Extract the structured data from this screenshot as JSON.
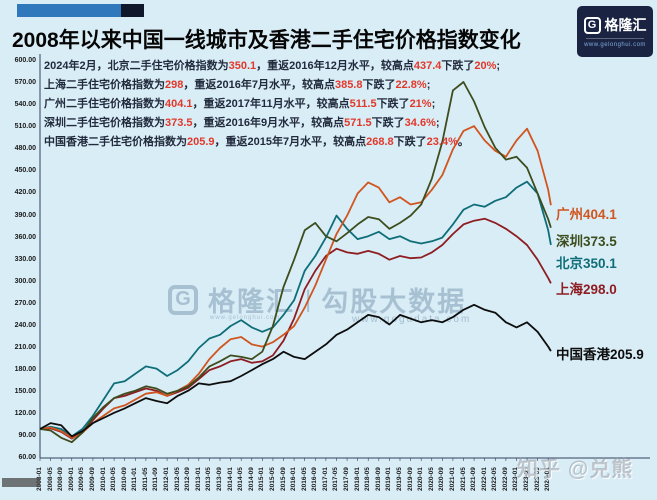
{
  "colors": {
    "background": "#d9edf6",
    "red_highlight": "#e2382a",
    "annotation_text": "#222b3d",
    "axis": "#33415e",
    "deco_blue": "#2e78bb",
    "deco_dark": "#10182c",
    "logo_bg": "#1a2442"
  },
  "header": {
    "title": "2008年以来中国一线城市及香港二手住宅价格指数变化",
    "logo": {
      "g": "G",
      "brand": "格隆汇",
      "url": "www.gelonghui.com"
    }
  },
  "annotations": {
    "lines": [
      [
        {
          "t": "2024年2月，北京二手住宅价格指数为"
        },
        {
          "t": "350.1",
          "red": true
        },
        {
          "t": "，重返2016年12月水平，较高点"
        },
        {
          "t": "437.4",
          "red": true
        },
        {
          "t": "下跌了"
        },
        {
          "t": "20%",
          "red": true
        },
        {
          "t": ";"
        }
      ],
      [
        {
          "t": "上海二手住宅价格指数为"
        },
        {
          "t": "298",
          "red": true
        },
        {
          "t": "，重返2016年7月水平，较高点"
        },
        {
          "t": "385.8",
          "red": true
        },
        {
          "t": "下跌了"
        },
        {
          "t": "22.8%",
          "red": true
        },
        {
          "t": ";"
        }
      ],
      [
        {
          "t": "广州二手住宅价格指数为"
        },
        {
          "t": "404.1",
          "red": true
        },
        {
          "t": "，重返2017年11月水平，较高点"
        },
        {
          "t": "511.5",
          "red": true
        },
        {
          "t": "下跌了"
        },
        {
          "t": "21%",
          "red": true
        },
        {
          "t": ";"
        }
      ],
      [
        {
          "t": "深圳二手住宅价格指数为"
        },
        {
          "t": "373.5",
          "red": true
        },
        {
          "t": "，重返2016年9月水平，较高点"
        },
        {
          "t": "571.5",
          "red": true
        },
        {
          "t": "下跌了"
        },
        {
          "t": "34.6%",
          "red": true
        },
        {
          "t": ";"
        }
      ],
      [
        {
          "t": "中国香港二手住宅价格指数为"
        },
        {
          "t": "205.9",
          "red": true
        },
        {
          "t": "，重返2015年7月水平，较高点"
        },
        {
          "t": "268.8",
          "red": true
        },
        {
          "t": "下跌了"
        },
        {
          "t": "23.4%",
          "red": true
        },
        {
          "t": "。"
        }
      ]
    ]
  },
  "watermark_center": {
    "g": "G",
    "brand": "格隆汇",
    "brand_url": "www.gelonghui.com",
    "sep": "|",
    "name": "勾股大数据",
    "url": "www.gogudata.com"
  },
  "watermark_corner": {
    "text": "知乎 @兑熊"
  },
  "chart_data": {
    "type": "line",
    "title": "2008年以来中国一线城市及香港二手住宅价格指数变化",
    "x_start": "2008-01",
    "x_end": "2024-02",
    "x_step_months": 4,
    "ylim": [
      60,
      600
    ],
    "y_step": 30,
    "grid": false,
    "legend_position": "right-end-labels",
    "y_axis_labels": [
      "600.00",
      "570.00",
      "540.00",
      "510.00",
      "480.00",
      "450.00",
      "420.00",
      "390.00",
      "360.00",
      "330.00",
      "300.00",
      "270.00",
      "240.00",
      "210.00",
      "180.00",
      "150.00",
      "120.00",
      "90.00",
      "60.00"
    ],
    "x_axis_labels": [
      "2008-01",
      "2008-05",
      "2008-09",
      "2009-01",
      "2009-05",
      "2009-09",
      "2010-01",
      "2010-05",
      "2010-09",
      "2011-01",
      "2011-05",
      "2011-09",
      "2012-01",
      "2012-05",
      "2012-09",
      "2013-01",
      "2013-05",
      "2013-09",
      "2014-01",
      "2014-05",
      "2014-09",
      "2015-01",
      "2015-05",
      "2015-09",
      "2016-01",
      "2016-05",
      "2016-09",
      "2017-01",
      "2017-05",
      "2017-09",
      "2018-01",
      "2018-05",
      "2018-09",
      "2019-01",
      "2019-05",
      "2019-09",
      "2020-01",
      "2020-05",
      "2020-09",
      "2021-01",
      "2021-05",
      "2021-09",
      "2022-01",
      "2022-05",
      "2022-09",
      "2023-01",
      "2023-05",
      "2023-09",
      "2024-01"
    ],
    "series": [
      {
        "name": "北京",
        "end_label": "北京350.1",
        "end_value": 350.1,
        "peak_value": 437.4,
        "color": "#0e6e78",
        "values": [
          100,
          103,
          100,
          90,
          100,
          118,
          140,
          162,
          165,
          175,
          185,
          182,
          172,
          180,
          192,
          210,
          223,
          228,
          240,
          248,
          238,
          232,
          238,
          255,
          275,
          315,
          335,
          360,
          390,
          372,
          358,
          362,
          368,
          358,
          362,
          355,
          352,
          355,
          360,
          378,
          398,
          405,
          402,
          410,
          415,
          428,
          436,
          420,
          370,
          350.1
        ]
      },
      {
        "name": "上海",
        "end_label": "上海298.0",
        "end_value": 298.0,
        "peak_value": 385.8,
        "color": "#8e1d22",
        "values": [
          100,
          101,
          96,
          87,
          96,
          112,
          128,
          142,
          145,
          150,
          155,
          152,
          145,
          150,
          156,
          168,
          180,
          185,
          192,
          195,
          190,
          192,
          200,
          220,
          250,
          290,
          315,
          335,
          345,
          340,
          338,
          342,
          338,
          330,
          335,
          332,
          333,
          340,
          350,
          365,
          378,
          383,
          385.8,
          380,
          372,
          362,
          350,
          330,
          305,
          298
        ]
      },
      {
        "name": "广州",
        "end_label": "广州404.1",
        "end_value": 404.1,
        "peak_value": 511.5,
        "color": "#d0551f",
        "values": [
          100,
          102,
          97,
          88,
          95,
          108,
          118,
          128,
          132,
          140,
          148,
          150,
          145,
          152,
          160,
          175,
          195,
          210,
          222,
          225,
          215,
          212,
          218,
          228,
          240,
          265,
          295,
          330,
          365,
          390,
          420,
          435,
          428,
          408,
          415,
          405,
          408,
          425,
          445,
          480,
          505,
          511.5,
          492,
          478,
          470,
          492,
          508,
          478,
          425,
          404.1
        ]
      },
      {
        "name": "深圳",
        "end_label": "深圳373.5",
        "end_value": 373.5,
        "peak_value": 571.5,
        "color": "#3d4d1d",
        "values": [
          100,
          98,
          88,
          82,
          95,
          115,
          130,
          142,
          148,
          152,
          158,
          155,
          148,
          152,
          158,
          170,
          185,
          192,
          200,
          198,
          195,
          205,
          240,
          293,
          330,
          370,
          380,
          362,
          355,
          366,
          378,
          388,
          385,
          372,
          380,
          390,
          405,
          440,
          490,
          560,
          571.5,
          545,
          510,
          482,
          466,
          470,
          455,
          420,
          385,
          373.5
        ]
      },
      {
        "name": "中国香港",
        "end_label": "中国香港205.9",
        "end_value": 205.9,
        "peak_value": 268.8,
        "color": "#0d0d0d",
        "values": [
          100,
          108,
          105,
          90,
          97,
          108,
          115,
          122,
          128,
          135,
          142,
          138,
          135,
          145,
          152,
          162,
          160,
          163,
          165,
          172,
          180,
          188,
          195,
          205,
          198,
          195,
          205,
          215,
          228,
          235,
          245,
          255,
          252,
          242,
          255,
          250,
          245,
          248,
          245,
          252,
          262,
          268.8,
          262,
          258,
          245,
          238,
          245,
          232,
          212,
          205.9
        ]
      }
    ]
  }
}
